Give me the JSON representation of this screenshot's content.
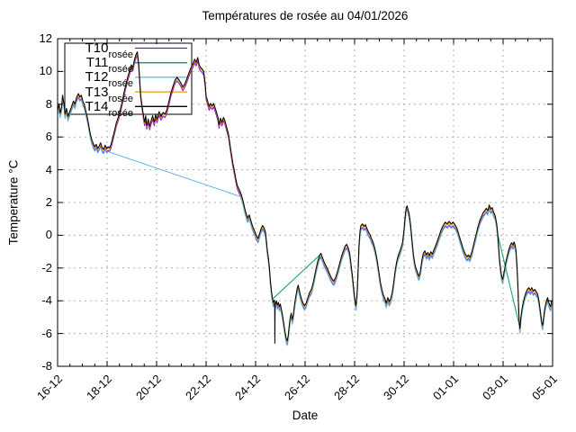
{
  "title": "Températures de rosée au 04/01/2026",
  "axes": {
    "x_label": "Date",
    "y_label": "Temperature °C",
    "x_tick_labels": [
      "16-12",
      "18-12",
      "20-12",
      "22-12",
      "24-12",
      "26-12",
      "28-12",
      "30-12",
      "01-01",
      "03-01",
      "05-01"
    ],
    "x_major_step_days": 2,
    "x_minor_step_days": 0.5,
    "y_tick_labels": [
      "12",
      "10",
      "8",
      "6",
      "4",
      "2",
      "0",
      "-2",
      "-4",
      "-6",
      "-8"
    ],
    "x_range_days": [
      0,
      20
    ],
    "y_range": [
      -8,
      12
    ],
    "grid": "dashed"
  },
  "colors": {
    "background": "#ffffff",
    "border": "#000000",
    "grid": "#b0b0b0",
    "text": "#000000"
  },
  "legend": {
    "position": "top-left",
    "entries": [
      {
        "label": "T10",
        "sub": "rosée",
        "color": "#9400d3"
      },
      {
        "label": "T11",
        "sub": "rosée",
        "color": "#009e73"
      },
      {
        "label": "T12",
        "sub": "rosée",
        "color": "#56b4e9"
      },
      {
        "label": "T13",
        "sub": "rosée",
        "color": "#e69f00"
      },
      {
        "label": "T14",
        "sub": "rosée",
        "color": "#000000"
      }
    ]
  },
  "chart_data": {
    "type": "line",
    "title": "Températures de rosée au 04/01/2026",
    "xlabel": "Date",
    "ylabel": "Temperature °C",
    "x_unit": "days since 16-12",
    "x_dates": [
      "16-12",
      "18-12",
      "20-12",
      "22-12",
      "24-12",
      "26-12",
      "28-12",
      "30-12",
      "01-01",
      "03-01",
      "05-01"
    ],
    "ylim": [
      -8,
      12
    ],
    "xlim_days": [
      0,
      20
    ],
    "legend_position": "top-left",
    "grid": true,
    "note": "Five dew-point temperature sensors, nearly coincident traces; T11 and T12 contain data gaps rendered as straight connecting segments.",
    "base_points": [
      [
        0,
        7.55
      ],
      [
        0.06,
        7.9
      ],
      [
        0.1,
        7.35
      ],
      [
        0.16,
        7.7
      ],
      [
        0.2,
        8.45
      ],
      [
        0.26,
        7.9
      ],
      [
        0.3,
        7.3
      ],
      [
        0.36,
        7.65
      ],
      [
        0.42,
        7.15
      ],
      [
        0.5,
        7.5
      ],
      [
        0.56,
        7.75
      ],
      [
        0.64,
        8.1
      ],
      [
        0.7,
        7.9
      ],
      [
        0.76,
        8.3
      ],
      [
        0.84,
        8.55
      ],
      [
        0.9,
        8.35
      ],
      [
        0.96,
        8.45
      ],
      [
        1.02,
        8.1
      ],
      [
        1.08,
        7.9
      ],
      [
        1.14,
        7.5
      ],
      [
        1.2,
        7.1
      ],
      [
        1.26,
        6.6
      ],
      [
        1.32,
        6.1
      ],
      [
        1.38,
        5.75
      ],
      [
        1.44,
        5.5
      ],
      [
        1.5,
        5.3
      ],
      [
        1.56,
        5.45
      ],
      [
        1.62,
        5.2
      ],
      [
        1.68,
        5.35
      ],
      [
        1.74,
        5.55
      ],
      [
        1.8,
        5.25
      ],
      [
        1.86,
        5.15
      ],
      [
        1.92,
        5.4
      ],
      [
        1.98,
        5.2
      ],
      [
        2.04,
        5.3
      ],
      [
        2.1,
        5.25
      ],
      [
        2.16,
        5.45
      ],
      [
        2.22,
        5.8
      ],
      [
        2.3,
        6.3
      ],
      [
        2.38,
        6.8
      ],
      [
        2.46,
        7.15
      ],
      [
        2.52,
        7.5
      ],
      [
        2.6,
        8.0
      ],
      [
        2.68,
        8.6
      ],
      [
        2.76,
        9.1
      ],
      [
        2.84,
        9.6
      ],
      [
        2.9,
        9.9
      ],
      [
        2.98,
        10.3
      ],
      [
        3.04,
        10.15
      ],
      [
        3.1,
        10.6
      ],
      [
        3.16,
        10.9
      ],
      [
        3.22,
        11.1
      ],
      [
        3.28,
        10.3
      ],
      [
        3.32,
        9.3
      ],
      [
        3.36,
        8.4
      ],
      [
        3.42,
        7.7
      ],
      [
        3.48,
        7.1
      ],
      [
        3.52,
        6.8
      ],
      [
        3.56,
        7.2
      ],
      [
        3.6,
        6.6
      ],
      [
        3.66,
        7.0
      ],
      [
        3.72,
        6.55
      ],
      [
        3.78,
        6.9
      ],
      [
        3.84,
        7.2
      ],
      [
        3.9,
        6.8
      ],
      [
        3.96,
        7.25
      ],
      [
        4.02,
        7.0
      ],
      [
        4.1,
        7.45
      ],
      [
        4.18,
        7.15
      ],
      [
        4.26,
        7.4
      ],
      [
        4.34,
        7.3
      ],
      [
        4.42,
        7.6
      ],
      [
        4.5,
        8.1
      ],
      [
        4.58,
        8.6
      ],
      [
        4.66,
        9.0
      ],
      [
        4.74,
        9.35
      ],
      [
        4.82,
        9.55
      ],
      [
        4.9,
        9.4
      ],
      [
        4.98,
        9.2
      ],
      [
        5.06,
        8.95
      ],
      [
        5.14,
        9.15
      ],
      [
        5.22,
        9.45
      ],
      [
        5.3,
        9.8
      ],
      [
        5.38,
        10.1
      ],
      [
        5.46,
        10.35
      ],
      [
        5.54,
        10.65
      ],
      [
        5.6,
        10.45
      ],
      [
        5.66,
        10.75
      ],
      [
        5.72,
        10.3
      ],
      [
        5.78,
        10.15
      ],
      [
        5.84,
        10.05
      ],
      [
        5.9,
        9.9
      ],
      [
        5.96,
        9.2
      ],
      [
        6.0,
        8.4
      ],
      [
        6.06,
        8.1
      ],
      [
        6.12,
        7.75
      ],
      [
        6.18,
        7.95
      ],
      [
        6.24,
        7.8
      ],
      [
        6.3,
        7.95
      ],
      [
        6.36,
        7.7
      ],
      [
        6.42,
        7.4
      ],
      [
        6.48,
        7.1
      ],
      [
        6.52,
        6.65
      ],
      [
        6.58,
        7.05
      ],
      [
        6.64,
        6.8
      ],
      [
        6.7,
        7.1
      ],
      [
        6.76,
        6.9
      ],
      [
        6.82,
        6.55
      ],
      [
        6.9,
        6.1
      ],
      [
        6.96,
        5.5
      ],
      [
        7.02,
        4.9
      ],
      [
        7.08,
        4.3
      ],
      [
        7.14,
        3.85
      ],
      [
        7.2,
        3.35
      ],
      [
        7.26,
        2.95
      ],
      [
        7.32,
        2.75
      ],
      [
        7.38,
        2.55
      ],
      [
        7.44,
        2.3
      ],
      [
        7.5,
        1.95
      ],
      [
        7.56,
        1.55
      ],
      [
        7.62,
        1.2
      ],
      [
        7.68,
        0.95
      ],
      [
        7.74,
        1.15
      ],
      [
        7.8,
        0.85
      ],
      [
        7.86,
        0.55
      ],
      [
        7.92,
        0.3
      ],
      [
        7.98,
        0.1
      ],
      [
        8.04,
        -0.15
      ],
      [
        8.1,
        -0.3
      ],
      [
        8.16,
        0.0
      ],
      [
        8.22,
        0.3
      ],
      [
        8.28,
        0.5
      ],
      [
        8.34,
        0.35
      ],
      [
        8.4,
        0.1
      ],
      [
        8.44,
        -0.5
      ],
      [
        8.48,
        -1.1
      ],
      [
        8.52,
        -1.5
      ],
      [
        8.56,
        -2.1
      ],
      [
        8.6,
        -2.9
      ],
      [
        8.64,
        -3.5
      ],
      [
        8.68,
        -3.95
      ],
      [
        8.72,
        -4.2
      ],
      [
        8.76,
        -4.05
      ],
      [
        8.8,
        -4.3
      ],
      [
        8.84,
        -4.1
      ],
      [
        8.88,
        -4.35
      ],
      [
        8.92,
        -4.2
      ],
      [
        8.96,
        -4.45
      ],
      [
        9.0,
        -4.3
      ],
      [
        9.04,
        -4.6
      ],
      [
        9.08,
        -4.9
      ],
      [
        9.12,
        -5.3
      ],
      [
        9.16,
        -5.7
      ],
      [
        9.2,
        -6.1
      ],
      [
        9.24,
        -6.4
      ],
      [
        9.28,
        -6.55
      ],
      [
        9.32,
        -6.2
      ],
      [
        9.36,
        -5.6
      ],
      [
        9.4,
        -5.1
      ],
      [
        9.44,
        -4.85
      ],
      [
        9.48,
        -5.25
      ],
      [
        9.52,
        -5.0
      ],
      [
        9.56,
        -4.5
      ],
      [
        9.6,
        -4.05
      ],
      [
        9.64,
        -3.7
      ],
      [
        9.68,
        -3.35
      ],
      [
        9.72,
        -3.15
      ],
      [
        9.76,
        -3.4
      ],
      [
        9.8,
        -3.7
      ],
      [
        9.86,
        -4.0
      ],
      [
        9.92,
        -4.25
      ],
      [
        9.98,
        -4.4
      ],
      [
        10.04,
        -4.25
      ],
      [
        10.1,
        -3.95
      ],
      [
        10.18,
        -3.6
      ],
      [
        10.26,
        -3.4
      ],
      [
        10.34,
        -2.9
      ],
      [
        10.42,
        -2.3
      ],
      [
        10.5,
        -1.75
      ],
      [
        10.58,
        -1.35
      ],
      [
        10.64,
        -1.2
      ],
      [
        10.7,
        -1.45
      ],
      [
        10.76,
        -1.7
      ],
      [
        10.84,
        -1.95
      ],
      [
        10.92,
        -2.2
      ],
      [
        11.0,
        -2.5
      ],
      [
        11.08,
        -2.75
      ],
      [
        11.16,
        -2.9
      ],
      [
        11.24,
        -2.65
      ],
      [
        11.32,
        -2.25
      ],
      [
        11.4,
        -1.8
      ],
      [
        11.48,
        -1.35
      ],
      [
        11.56,
        -1.0
      ],
      [
        11.62,
        -0.75
      ],
      [
        11.68,
        -0.65
      ],
      [
        11.74,
        -0.85
      ],
      [
        11.8,
        -1.2
      ],
      [
        11.86,
        -1.9
      ],
      [
        11.92,
        -2.7
      ],
      [
        11.98,
        -3.6
      ],
      [
        12.02,
        -4.15
      ],
      [
        12.06,
        -4.4
      ],
      [
        12.1,
        -3.6
      ],
      [
        12.14,
        -2.2
      ],
      [
        12.18,
        -0.7
      ],
      [
        12.22,
        0.2
      ],
      [
        12.26,
        0.5
      ],
      [
        12.32,
        0.6
      ],
      [
        12.38,
        0.45
      ],
      [
        12.44,
        0.55
      ],
      [
        12.5,
        0.3
      ],
      [
        12.56,
        0.1
      ],
      [
        12.62,
        -0.05
      ],
      [
        12.68,
        -0.3
      ],
      [
        12.74,
        -0.5
      ],
      [
        12.8,
        -0.8
      ],
      [
        12.86,
        -1.2
      ],
      [
        12.92,
        -1.7
      ],
      [
        12.98,
        -2.3
      ],
      [
        13.04,
        -2.95
      ],
      [
        13.1,
        -3.4
      ],
      [
        13.16,
        -3.75
      ],
      [
        13.22,
        -3.95
      ],
      [
        13.28,
        -4.25
      ],
      [
        13.34,
        -3.9
      ],
      [
        13.4,
        -4.15
      ],
      [
        13.46,
        -3.95
      ],
      [
        13.52,
        -3.6
      ],
      [
        13.58,
        -3.0
      ],
      [
        13.64,
        -2.25
      ],
      [
        13.7,
        -1.7
      ],
      [
        13.76,
        -1.35
      ],
      [
        13.82,
        -1.1
      ],
      [
        13.88,
        -0.85
      ],
      [
        13.94,
        -0.5
      ],
      [
        14.0,
        0.3
      ],
      [
        14.04,
        1.0
      ],
      [
        14.08,
        1.55
      ],
      [
        14.12,
        1.7
      ],
      [
        14.16,
        1.45
      ],
      [
        14.2,
        1.25
      ],
      [
        14.26,
        0.6
      ],
      [
        14.32,
        -0.4
      ],
      [
        14.38,
        -1.3
      ],
      [
        14.44,
        -1.9
      ],
      [
        14.5,
        -2.2
      ],
      [
        14.56,
        -2.45
      ],
      [
        14.6,
        -2.6
      ],
      [
        14.66,
        -2.3
      ],
      [
        14.72,
        -1.6
      ],
      [
        14.78,
        -1.2
      ],
      [
        14.84,
        -1.05
      ],
      [
        14.9,
        -1.3
      ],
      [
        14.96,
        -1.15
      ],
      [
        15.02,
        -1.35
      ],
      [
        15.08,
        -1.1
      ],
      [
        15.14,
        -1.25
      ],
      [
        15.2,
        -1.0
      ],
      [
        15.26,
        -0.8
      ],
      [
        15.34,
        -0.45
      ],
      [
        15.42,
        -0.1
      ],
      [
        15.5,
        0.25
      ],
      [
        15.58,
        0.5
      ],
      [
        15.66,
        0.7
      ],
      [
        15.74,
        0.6
      ],
      [
        15.82,
        0.75
      ],
      [
        15.9,
        0.6
      ],
      [
        15.98,
        0.7
      ],
      [
        16.06,
        0.55
      ],
      [
        16.14,
        0.3
      ],
      [
        16.22,
        -0.1
      ],
      [
        16.3,
        -0.5
      ],
      [
        16.38,
        -0.9
      ],
      [
        16.46,
        -1.2
      ],
      [
        16.54,
        -1.4
      ],
      [
        16.6,
        -1.3
      ],
      [
        16.66,
        -1.45
      ],
      [
        16.74,
        -1.1
      ],
      [
        16.82,
        -0.6
      ],
      [
        16.9,
        -0.1
      ],
      [
        16.98,
        0.4
      ],
      [
        17.06,
        0.8
      ],
      [
        17.14,
        1.1
      ],
      [
        17.2,
        1.3
      ],
      [
        17.26,
        1.4
      ],
      [
        17.32,
        1.55
      ],
      [
        17.38,
        1.4
      ],
      [
        17.44,
        1.75
      ],
      [
        17.5,
        1.5
      ],
      [
        17.56,
        1.6
      ],
      [
        17.62,
        1.3
      ],
      [
        17.68,
        1.1
      ],
      [
        17.74,
        0.6
      ],
      [
        17.78,
        0.0
      ],
      [
        17.82,
        -0.8
      ],
      [
        17.86,
        -1.6
      ],
      [
        17.9,
        -2.2
      ],
      [
        17.94,
        -2.6
      ],
      [
        17.98,
        -2.8
      ],
      [
        18.02,
        -2.5
      ],
      [
        18.06,
        -2.2
      ],
      [
        18.1,
        -1.8
      ],
      [
        18.16,
        -1.4
      ],
      [
        18.22,
        -1.05
      ],
      [
        18.28,
        -0.75
      ],
      [
        18.34,
        -0.55
      ],
      [
        18.4,
        -0.7
      ],
      [
        18.44,
        -0.5
      ],
      [
        18.48,
        -0.65
      ],
      [
        18.52,
        -1.0
      ],
      [
        18.56,
        -1.9
      ],
      [
        18.6,
        -3.2
      ],
      [
        18.63,
        -4.6
      ],
      [
        18.66,
        -5.55
      ],
      [
        18.68,
        -5.8
      ],
      [
        18.72,
        -5.1
      ],
      [
        18.76,
        -4.65
      ],
      [
        18.8,
        -4.3
      ],
      [
        18.86,
        -3.9
      ],
      [
        18.92,
        -3.6
      ],
      [
        18.98,
        -3.4
      ],
      [
        19.04,
        -3.3
      ],
      [
        19.1,
        -3.45
      ],
      [
        19.16,
        -3.3
      ],
      [
        19.22,
        -3.5
      ],
      [
        19.28,
        -3.4
      ],
      [
        19.34,
        -3.55
      ],
      [
        19.4,
        -3.7
      ],
      [
        19.46,
        -4.2
      ],
      [
        19.52,
        -4.9
      ],
      [
        19.56,
        -5.4
      ],
      [
        19.6,
        -5.6
      ],
      [
        19.64,
        -5.1
      ],
      [
        19.68,
        -4.6
      ],
      [
        19.72,
        -4.3
      ],
      [
        19.76,
        -4.05
      ],
      [
        19.8,
        -3.9
      ],
      [
        19.84,
        -4.15
      ],
      [
        19.88,
        -4.35
      ],
      [
        19.92,
        -4.45
      ],
      [
        19.96,
        -4.1
      ]
    ],
    "series": [
      {
        "name": "T10",
        "sub": "rosée",
        "color": "#9400d3",
        "offset": -0.12,
        "gaps": [],
        "extra": []
      },
      {
        "name": "T11",
        "sub": "rosée",
        "color": "#009e73",
        "offset": 0.05,
        "gaps": [
          [
            8.7,
            10.6
          ],
          [
            17.8,
            18.64
          ]
        ],
        "extra": []
      },
      {
        "name": "T12",
        "sub": "rosée",
        "color": "#56b4e9",
        "offset": -0.18,
        "gaps": [
          [
            2.12,
            7.36
          ]
        ],
        "extra": []
      },
      {
        "name": "T13",
        "sub": "rosée",
        "color": "#e69f00",
        "offset": 0.02,
        "gaps": [],
        "extra": []
      },
      {
        "name": "T14",
        "sub": "rosée",
        "color": "#000000",
        "offset": 0.1,
        "gaps": [],
        "extra": [
          [
            8.77,
            -4.2
          ],
          [
            8.78,
            -6.6
          ],
          [
            8.79,
            -4.25
          ]
        ]
      }
    ]
  }
}
